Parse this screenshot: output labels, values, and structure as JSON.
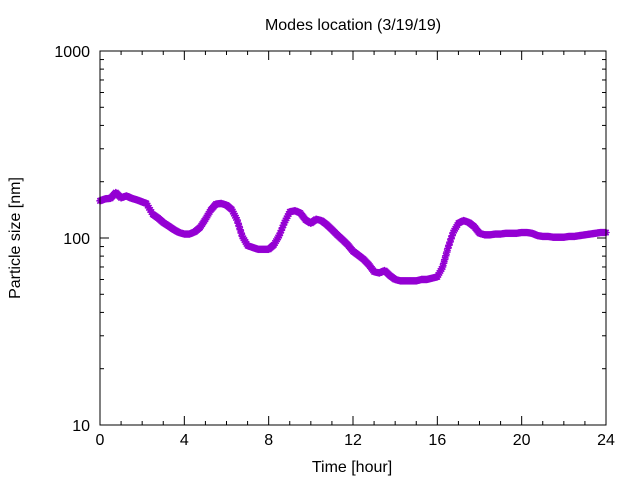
{
  "chart_data": {
    "type": "scatter",
    "title": "Modes location (3/19/19)",
    "xlabel": "Time [hour]",
    "ylabel": "Particle size [nm]",
    "xlim": [
      0,
      24
    ],
    "ylim": [
      10,
      1000
    ],
    "yscale": "log",
    "xticks": [
      0,
      4,
      8,
      12,
      16,
      20,
      24
    ],
    "xtick_labels": [
      "0",
      "4",
      "8",
      "12",
      "16",
      "20",
      "24"
    ],
    "yticks": [
      10,
      100,
      1000
    ],
    "ytick_labels": [
      "10",
      "100",
      "1000"
    ],
    "grid": false,
    "legend": "none",
    "marker_color": "#9400d3",
    "series": [
      {
        "x": [
          0.0,
          0.25,
          0.5,
          0.75,
          1.0,
          1.25,
          1.5,
          1.75,
          2.0,
          2.2,
          2.5,
          2.75,
          3.0,
          3.25,
          3.5,
          3.75,
          4.0,
          4.25,
          4.5,
          4.75,
          5.0,
          5.25,
          5.5,
          5.75,
          6.0,
          6.25,
          6.5,
          6.75,
          7.0,
          7.25,
          7.5,
          7.75,
          8.0,
          8.25,
          8.5,
          8.75,
          9.0,
          9.25,
          9.5,
          9.75,
          10.0,
          10.25,
          10.5,
          10.75,
          11.0,
          11.25,
          11.5,
          11.75,
          12.0,
          12.25,
          12.5,
          12.75,
          13.0,
          13.25,
          13.5,
          13.75,
          14.0,
          14.25,
          14.5,
          14.75,
          15.0,
          15.25,
          15.5,
          15.75,
          16.0,
          16.25,
          16.5,
          16.75,
          17.0,
          17.25,
          17.5,
          17.75,
          18.0,
          18.25,
          18.5,
          18.75,
          19.0,
          19.25,
          19.5,
          19.75,
          20.0,
          20.25,
          20.5,
          20.75,
          21.0,
          21.25,
          21.5,
          21.75,
          22.0,
          22.25,
          22.5,
          22.75,
          23.0,
          23.25,
          23.5,
          23.75,
          24.0
        ],
        "y": [
          158,
          162,
          163,
          175,
          164,
          168,
          163,
          160,
          156,
          153,
          134,
          128,
          121,
          116,
          111,
          107,
          105,
          105,
          108,
          114,
          126,
          141,
          152,
          153,
          150,
          142,
          125,
          102,
          91,
          89,
          87,
          87,
          87,
          92,
          103,
          121,
          138,
          140,
          136,
          125,
          120,
          126,
          124,
          118,
          111,
          104,
          98,
          92,
          85,
          81,
          77,
          72,
          66,
          65,
          67,
          63,
          60,
          59,
          59,
          59,
          59,
          60,
          60,
          61,
          62,
          70,
          88,
          107,
          120,
          124,
          121,
          115,
          106,
          104,
          104,
          105,
          105,
          106,
          106,
          106,
          107,
          107,
          106,
          103,
          102,
          102,
          101,
          101,
          101,
          102,
          102,
          103,
          104,
          105,
          106,
          107,
          107
        ]
      }
    ]
  }
}
